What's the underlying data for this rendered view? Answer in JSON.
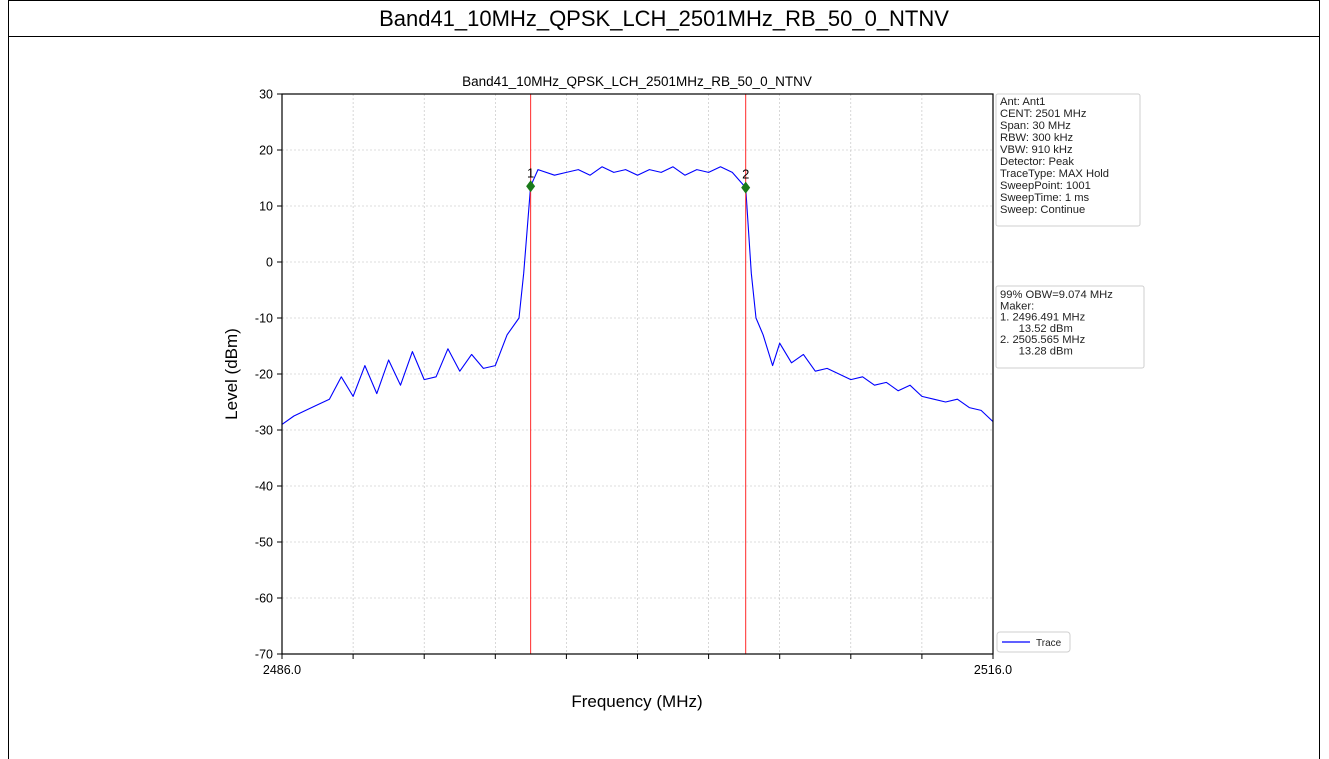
{
  "page": {
    "header_title": "Band41_10MHz_QPSK_LCH_2501MHz_RB_50_0_NTNV"
  },
  "settings_box": [
    "Ant: Ant1",
    "CENT: 2501 MHz",
    "Span: 30 MHz",
    "RBW: 300 kHz",
    "VBW: 910 kHz",
    "Detector: Peak",
    "TraceType: MAX Hold",
    "SweepPoint: 1001",
    "SweepTime: 1 ms",
    "Sweep: Continue"
  ],
  "result_box": [
    "99% OBW=9.074 MHz",
    "Maker:",
    "1. 2496.491 MHz",
    "   13.52 dBm",
    "2. 2505.565 MHz",
    "   13.28 dBm"
  ],
  "colors": {
    "trace": "#0000ff",
    "marker_line": "#ff2a2a",
    "marker_point": "#1a7a1a",
    "grid": "#bdbdbd"
  },
  "chart_data": {
    "type": "line",
    "title": "Band41_10MHz_QPSK_LCH_2501MHz_RB_50_0_NTNV",
    "xlabel": "Frequency (MHz)",
    "ylabel": "Level (dBm)",
    "xlim": [
      2486.0,
      2516.0
    ],
    "ylim": [
      -70,
      30
    ],
    "xticks": [
      2486.0,
      2516.0
    ],
    "xtick_labels": [
      "2486.0",
      "2516.0"
    ],
    "yticks": [
      30,
      20,
      10,
      0,
      -10,
      -20,
      -30,
      -40,
      -50,
      -60,
      -70
    ],
    "grid": true,
    "legend": {
      "entries": [
        "Trace"
      ],
      "placement": "lower-right"
    },
    "series": [
      {
        "name": "Trace",
        "x": [
          2486.0,
          2486.5,
          2487.0,
          2487.5,
          2488.0,
          2488.5,
          2489.0,
          2489.5,
          2490.0,
          2490.5,
          2491.0,
          2491.5,
          2492.0,
          2492.5,
          2493.0,
          2493.5,
          2494.0,
          2494.5,
          2495.0,
          2495.5,
          2496.0,
          2496.2,
          2496.49,
          2496.8,
          2497.5,
          2498.0,
          2498.5,
          2499.0,
          2499.5,
          2500.0,
          2500.5,
          2501.0,
          2501.5,
          2502.0,
          2502.5,
          2503.0,
          2503.5,
          2504.0,
          2504.5,
          2505.0,
          2505.565,
          2505.8,
          2506.0,
          2506.3,
          2506.7,
          2507.0,
          2507.5,
          2508.0,
          2508.5,
          2509.0,
          2509.5,
          2510.0,
          2510.5,
          2511.0,
          2511.5,
          2512.0,
          2512.5,
          2513.0,
          2513.5,
          2514.0,
          2514.5,
          2515.0,
          2515.5,
          2516.0
        ],
        "y": [
          -29.0,
          -27.5,
          -26.5,
          -25.5,
          -24.5,
          -20.5,
          -24.0,
          -18.5,
          -23.5,
          -17.5,
          -22.0,
          -16.0,
          -21.0,
          -20.5,
          -15.5,
          -19.5,
          -16.5,
          -19.0,
          -18.5,
          -13.0,
          -10.0,
          -2.0,
          13.52,
          16.5,
          15.5,
          16.0,
          16.5,
          15.5,
          17.0,
          16.0,
          16.5,
          15.5,
          16.5,
          16.0,
          17.0,
          15.5,
          16.5,
          16.0,
          17.0,
          16.0,
          13.28,
          -2.0,
          -10.0,
          -13.0,
          -18.5,
          -14.5,
          -18.0,
          -16.5,
          -19.5,
          -19.0,
          -20.0,
          -21.0,
          -20.5,
          -22.0,
          -21.5,
          -23.0,
          -22.0,
          -24.0,
          -24.5,
          -25.0,
          -24.5,
          -26.0,
          -26.5,
          -28.5
        ]
      }
    ],
    "markers": [
      {
        "label": "1",
        "x": 2496.491,
        "y": 13.52
      },
      {
        "label": "2",
        "x": 2505.565,
        "y": 13.28
      }
    ]
  }
}
